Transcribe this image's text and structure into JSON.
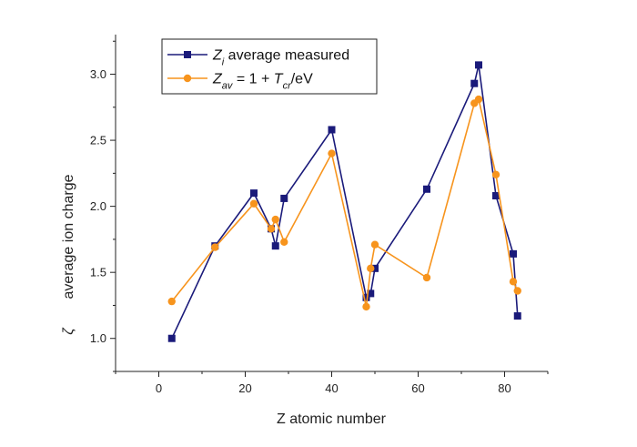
{
  "chart_data": {
    "type": "line",
    "xlabel": "Z atomic number",
    "ylabel_symbol": "ζ",
    "ylabel": "average ion charge",
    "xlim": [
      -10,
      90
    ],
    "ylim": [
      0.75,
      3.3
    ],
    "xticks": [
      0,
      20,
      40,
      60,
      80
    ],
    "yticks": [
      1.0,
      1.5,
      2.0,
      2.5,
      3.0
    ],
    "xtick_labels": [
      "0",
      "20",
      "40",
      "60",
      "80"
    ],
    "ytick_labels": [
      "1.0",
      "1.5",
      "2.0",
      "2.5",
      "3.0"
    ],
    "grid": false,
    "legend_position": "top-left",
    "series": [
      {
        "legend": {
          "prefix": "Z",
          "sub": "i",
          "suffix": " average measured"
        },
        "color": "#1a1a7a",
        "marker": "square",
        "x": [
          3,
          13,
          22,
          26,
          27,
          29,
          40,
          48,
          49,
          50,
          62,
          73,
          74,
          78,
          82,
          83
        ],
        "y": [
          1.0,
          1.7,
          2.1,
          1.83,
          1.7,
          2.06,
          2.58,
          1.31,
          1.34,
          1.53,
          2.13,
          2.93,
          3.07,
          2.08,
          1.64,
          1.17
        ]
      },
      {
        "legend": {
          "prefix": "Z",
          "sub": "av",
          "middle": " = 1 + ",
          "prefix2": "T",
          "sub2": "cr",
          "suffix": "/eV"
        },
        "color": "#f7941d",
        "marker": "circle",
        "x": [
          3,
          13,
          22,
          26,
          27,
          29,
          40,
          48,
          49,
          50,
          62,
          73,
          74,
          78,
          82,
          83
        ],
        "y": [
          1.28,
          1.69,
          2.02,
          1.83,
          1.9,
          1.73,
          2.4,
          1.24,
          1.53,
          1.71,
          1.46,
          2.78,
          2.81,
          2.24,
          1.43,
          1.36
        ]
      }
    ]
  }
}
